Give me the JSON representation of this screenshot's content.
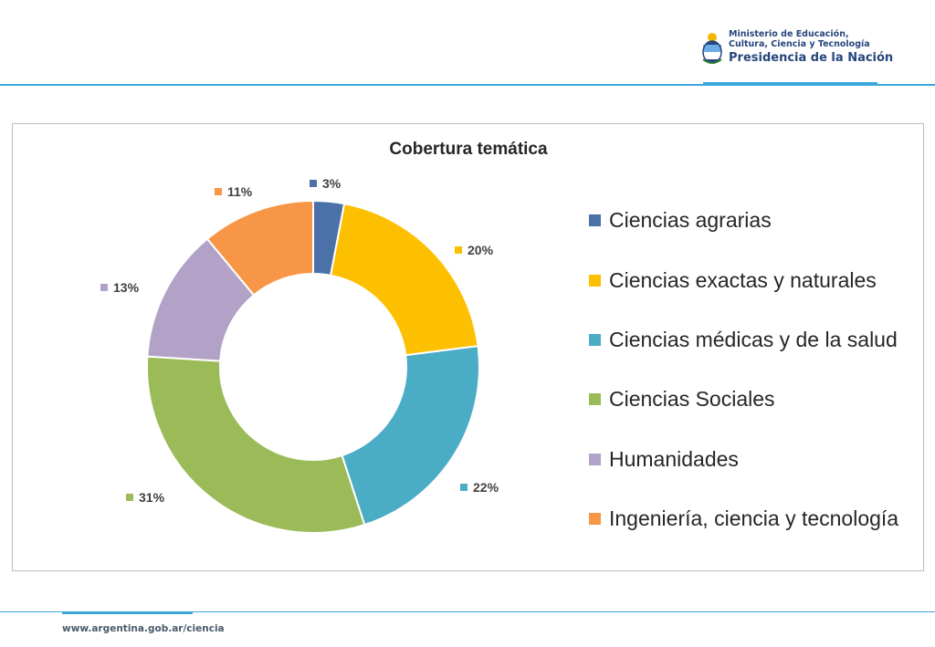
{
  "header": {
    "logo": {
      "line1": "Ministerio de Educación,",
      "line2": "Cultura, Ciencia y Tecnología",
      "line3": "Presidencia de la Nación",
      "color": "#27467d"
    },
    "accent_color": "#3aa6dc"
  },
  "chart_data": {
    "type": "pie",
    "variant": "donut",
    "title": "Cobertura temática",
    "unit": "%",
    "categories": [
      "Ciencias agrarias",
      "Ciencias exactas y naturales",
      "Ciencias médicas y de la salud",
      "Ciencias Sociales",
      "Humanidades",
      "Ingeniería, ciencia y tecnología"
    ],
    "values": [
      3,
      20,
      22,
      31,
      13,
      11
    ],
    "labels": [
      "3%",
      "20%",
      "22%",
      "31%",
      "13%",
      "11%"
    ],
    "colors": [
      "#4a72a9",
      "#fdc000",
      "#4bacc6",
      "#9bbb59",
      "#b2a2c7",
      "#f79646"
    ],
    "legend_position": "right"
  },
  "footer": {
    "url": "www.argentina.gob.ar/ciencia"
  }
}
